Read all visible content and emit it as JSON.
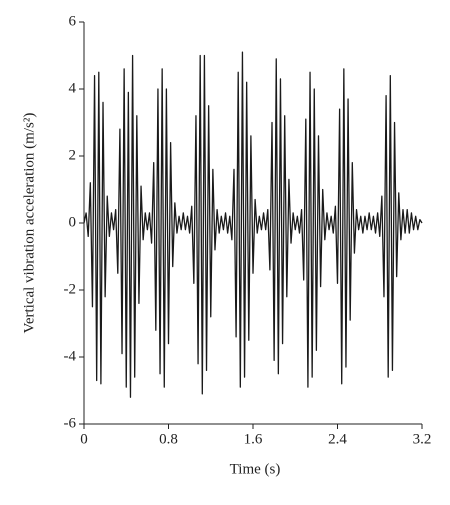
{
  "chart_data": {
    "type": "line",
    "xlabel": "Time (s)",
    "ylabel": "Vertical vibration acceleration (m/s²)",
    "xlim": [
      0,
      3.2
    ],
    "xticks": [
      0,
      0.8,
      1.6,
      2.4,
      3.2
    ],
    "ylim": [
      -6,
      6
    ],
    "yticks": [
      -6,
      -4,
      -2,
      0,
      2,
      4,
      6
    ],
    "x": [
      0,
      0.02,
      0.04,
      0.06,
      0.08,
      0.1,
      0.12,
      0.14,
      0.16,
      0.18,
      0.2,
      0.22,
      0.24,
      0.26,
      0.28,
      0.3,
      0.32,
      0.34,
      0.36,
      0.38,
      0.4,
      0.42,
      0.44,
      0.46,
      0.48,
      0.5,
      0.52,
      0.54,
      0.56,
      0.58,
      0.6,
      0.62,
      0.64,
      0.66,
      0.68,
      0.7,
      0.72,
      0.74,
      0.76,
      0.78,
      0.8,
      0.82,
      0.84,
      0.86,
      0.88,
      0.9,
      0.92,
      0.94,
      0.96,
      0.98,
      1,
      1.02,
      1.04,
      1.06,
      1.08,
      1.1,
      1.12,
      1.14,
      1.16,
      1.18,
      1.2,
      1.22,
      1.24,
      1.26,
      1.28,
      1.3,
      1.32,
      1.34,
      1.36,
      1.38,
      1.4,
      1.42,
      1.44,
      1.46,
      1.48,
      1.5,
      1.52,
      1.54,
      1.56,
      1.58,
      1.6,
      1.62,
      1.64,
      1.66,
      1.68,
      1.7,
      1.72,
      1.74,
      1.76,
      1.78,
      1.8,
      1.82,
      1.84,
      1.86,
      1.88,
      1.9,
      1.92,
      1.94,
      1.96,
      1.98,
      2,
      2.02,
      2.04,
      2.06,
      2.08,
      2.1,
      2.12,
      2.14,
      2.16,
      2.18,
      2.2,
      2.22,
      2.24,
      2.26,
      2.28,
      2.3,
      2.32,
      2.34,
      2.36,
      2.38,
      2.4,
      2.42,
      2.44,
      2.46,
      2.48,
      2.5,
      2.52,
      2.54,
      2.56,
      2.58,
      2.6,
      2.62,
      2.64,
      2.66,
      2.68,
      2.7,
      2.72,
      2.74,
      2.76,
      2.78,
      2.8,
      2.82,
      2.84,
      2.86,
      2.88,
      2.9,
      2.92,
      2.94,
      2.96,
      2.98,
      3,
      3.02,
      3.04,
      3.06,
      3.08,
      3.1,
      3.12,
      3.14,
      3.16,
      3.18,
      3.2
    ],
    "series": [
      {
        "color": "#1a1a1a",
        "values": [
          0,
          0.3,
          -0.4,
          1.2,
          -2.5,
          4.4,
          -4.7,
          4.5,
          -4.8,
          3.6,
          -2.2,
          0.8,
          -0.4,
          0.3,
          -0.2,
          0.4,
          -1.5,
          2.8,
          -3.9,
          4.6,
          -4.9,
          3.9,
          -5.2,
          5.0,
          -4.6,
          3.2,
          -2.4,
          1.1,
          -0.5,
          0.3,
          -0.2,
          0.3,
          -0.6,
          1.8,
          -3.2,
          4.0,
          -4.5,
          4.6,
          -4.9,
          4.0,
          -3.6,
          2.4,
          -1.3,
          0.6,
          -0.3,
          0.2,
          -0.2,
          0.3,
          -0.2,
          0.2,
          -0.3,
          0.5,
          -1.8,
          3.2,
          -4.2,
          5.0,
          -5.1,
          5.0,
          -4.4,
          3.5,
          -2.8,
          1.6,
          -0.8,
          0.4,
          -0.3,
          0.2,
          -0.2,
          0.3,
          -0.3,
          0.2,
          -0.5,
          1.6,
          -3.4,
          4.5,
          -4.9,
          5.1,
          -4.6,
          4.2,
          -3.5,
          2.6,
          -1.5,
          0.7,
          -0.3,
          0.2,
          -0.2,
          0.3,
          -0.2,
          0.4,
          -1.4,
          3.0,
          -4.1,
          4.9,
          -4.5,
          4.3,
          -3.6,
          3.2,
          -2.2,
          1.3,
          -0.6,
          0.3,
          -0.2,
          0.2,
          -0.3,
          0.4,
          -1.7,
          3.1,
          -4.9,
          4.5,
          -4.6,
          4.0,
          -3.8,
          2.6,
          -1.9,
          1.0,
          -0.5,
          0.3,
          -0.2,
          0.2,
          -0.3,
          0.5,
          -1.8,
          3.4,
          -4.8,
          4.6,
          -4.3,
          3.7,
          -2.9,
          1.8,
          -0.9,
          0.4,
          -0.2,
          0.2,
          -0.3,
          0.2,
          -0.2,
          0.3,
          -0.2,
          0.2,
          -0.3,
          0.3,
          -0.4,
          0.8,
          -2.2,
          3.8,
          -4.6,
          4.4,
          -4.4,
          3.0,
          -1.6,
          0.9,
          -0.5,
          0.4,
          -0.3,
          0.4,
          -0.3,
          0.3,
          -0.2,
          0.2,
          -0.2,
          0.1,
          0
        ]
      }
    ]
  }
}
